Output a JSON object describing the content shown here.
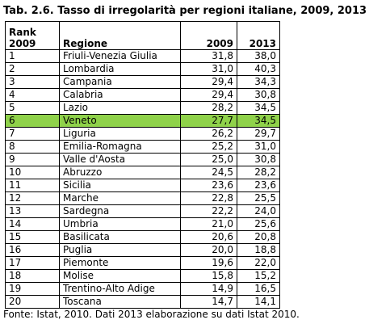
{
  "title": "Tab. 2.6. Tasso di irregolarità per regioni italiane, 2009, 2013",
  "headers": {
    "rank_line1": "Rank",
    "rank_line2": "2009",
    "region": "Regione",
    "y2009": "2009",
    "y2013": "2013"
  },
  "highlight_color": "#8fd24a",
  "highlight_row": 5,
  "rows": [
    {
      "rank": "1",
      "region": "Friuli-Venezia Giulia",
      "v2009": "31,8",
      "v2013": "38,0"
    },
    {
      "rank": "2",
      "region": "Lombardia",
      "v2009": "31,0",
      "v2013": "40,3"
    },
    {
      "rank": "3",
      "region": "Campania",
      "v2009": "29,4",
      "v2013": "34,3"
    },
    {
      "rank": "4",
      "region": "Calabria",
      "v2009": "29,4",
      "v2013": "30,8"
    },
    {
      "rank": "5",
      "region": "Lazio",
      "v2009": "28,2",
      "v2013": "34,5"
    },
    {
      "rank": "6",
      "region": "Veneto",
      "v2009": "27,7",
      "v2013": "34,5"
    },
    {
      "rank": "7",
      "region": "Liguria",
      "v2009": "26,2",
      "v2013": "29,7"
    },
    {
      "rank": "8",
      "region": "Emilia-Romagna",
      "v2009": "25,2",
      "v2013": "31,0"
    },
    {
      "rank": "9",
      "region": "Valle d'Aosta",
      "v2009": "25,0",
      "v2013": "30,8"
    },
    {
      "rank": "10",
      "region": "Abruzzo",
      "v2009": "24,5",
      "v2013": "28,2"
    },
    {
      "rank": "11",
      "region": "Sicilia",
      "v2009": "23,6",
      "v2013": "23,6"
    },
    {
      "rank": "12",
      "region": "Marche",
      "v2009": "22,8",
      "v2013": "25,5"
    },
    {
      "rank": "13",
      "region": "Sardegna",
      "v2009": "22,2",
      "v2013": "24,0"
    },
    {
      "rank": "14",
      "region": "Umbria",
      "v2009": "21,0",
      "v2013": "25,6"
    },
    {
      "rank": "15",
      "region": "Basilicata",
      "v2009": "20,6",
      "v2013": "20,8"
    },
    {
      "rank": "16",
      "region": "Puglia",
      "v2009": "20,0",
      "v2013": "18,8"
    },
    {
      "rank": "17",
      "region": "Piemonte",
      "v2009": "19,6",
      "v2013": "22,0"
    },
    {
      "rank": "18",
      "region": "Molise",
      "v2009": "15,8",
      "v2013": "15,2"
    },
    {
      "rank": "19",
      "region": "Trentino-Alto Adige",
      "v2009": "14,9",
      "v2013": "16,5"
    },
    {
      "rank": "20",
      "region": "Toscana",
      "v2009": "14,7",
      "v2013": "14,1"
    }
  ],
  "footer": "Fonte: Istat, 2010. Dati 2013 elaborazione su dati Istat 2010."
}
